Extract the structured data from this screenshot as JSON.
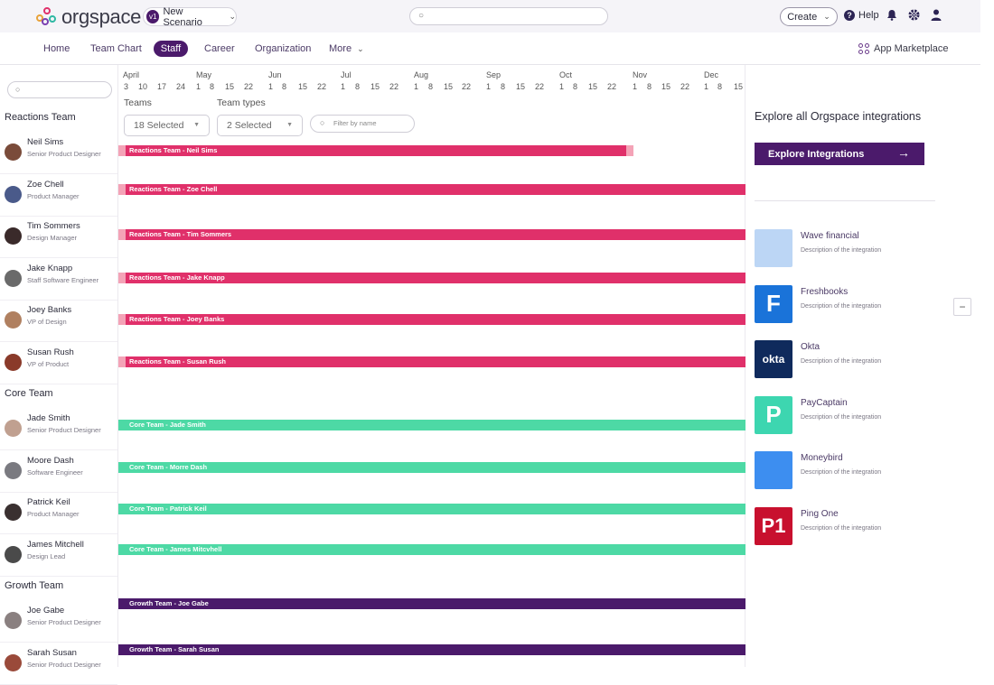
{
  "app": {
    "name": "orgspace"
  },
  "topbar": {
    "scenario_badge": "v1",
    "scenario_name": "New Scenario",
    "search_placeholder": "",
    "create_label": "Create",
    "help_label": "Help"
  },
  "nav": {
    "items": [
      "Home",
      "Team Chart",
      "Staff",
      "Career",
      "Organization",
      "More"
    ],
    "active": "Staff",
    "marketplace_label": "App Marketplace"
  },
  "timeline": {
    "months": [
      "April",
      "May",
      "Jun",
      "Jul",
      "Aug",
      "Sep",
      "Oct",
      "Nov",
      "Dec"
    ],
    "days": [
      "3",
      "10",
      "17",
      "24",
      "1",
      "8",
      "15",
      "22",
      "1",
      "8",
      "15",
      "22",
      "1",
      "8",
      "15",
      "22",
      "1",
      "8",
      "15",
      "22",
      "1",
      "8",
      "15",
      "22",
      "1",
      "8",
      "15",
      "22",
      "1",
      "8",
      "15",
      "22",
      "1",
      "8",
      "15"
    ],
    "filters": {
      "teams_label": "Teams",
      "teams_value": "18 Selected",
      "team_types_label": "Team types",
      "team_types_value": "2 Selected",
      "name_placeholder": "Filter by name"
    }
  },
  "colors": {
    "reactions": "#e0306a",
    "reactions_stub": "#f4a3b7",
    "core": "#4dd9a5",
    "growth": "#4b1a6b",
    "accent": "#4b1a6b"
  },
  "teams": [
    {
      "name": "Reactions Team",
      "members": [
        {
          "name": "Neil Sims",
          "role": "Senior Product Designer",
          "bar": "Reactions Team - Neil Sims"
        },
        {
          "name": "Zoe Chell",
          "role": "Product Manager",
          "bar": "Reactions Team - Zoe Chell"
        },
        {
          "name": "Tim Sommers",
          "role": "Design Manager",
          "bar": "Reactions Team - Tim Sommers"
        },
        {
          "name": "Jake Knapp",
          "role": "Staff Software Engineer",
          "bar": "Reactions Team - Jake Knapp"
        },
        {
          "name": "Joey Banks",
          "role": "VP of Design",
          "bar": "Reactions Team - Joey Banks"
        },
        {
          "name": "Susan Rush",
          "role": "VP of Product",
          "bar": "Reactions Team - Susan Rush"
        }
      ]
    },
    {
      "name": "Core Team",
      "members": [
        {
          "name": "Jade Smith",
          "role": "Senior Product Designer",
          "bar": "Core Team - Jade Smith"
        },
        {
          "name": "Moore Dash",
          "role": "Software Engineer",
          "bar": "Core Team - Morre Dash"
        },
        {
          "name": "Patrick Keil",
          "role": "Product Manager",
          "bar": "Core Team - Patrick Keil"
        },
        {
          "name": "James Mitchell",
          "role": "Design Lead",
          "bar": "Core Team - James Mitcvhell"
        }
      ]
    },
    {
      "name": "Growth Team",
      "members": [
        {
          "name": "Joe Gabe",
          "role": "Senior Product Designer",
          "bar": "Growth Team - Joe Gabe"
        },
        {
          "name": "Sarah Susan",
          "role": "Senior Product Designer",
          "bar": "Growth Team - Sarah Susan"
        }
      ]
    }
  ],
  "integrations_panel": {
    "title": "Explore all Orgspace integrations",
    "button_label": "Explore Integrations",
    "items": [
      {
        "name": "Wave financial",
        "desc": "Description of the integration",
        "logo_text": "",
        "color": "#bcd6f5"
      },
      {
        "name": "Freshbooks",
        "desc": "Description of the integration",
        "logo_text": "F",
        "color": "#1a73d9"
      },
      {
        "name": "Okta",
        "desc": "Description of the integration",
        "logo_text": "okta",
        "color": "#0f2a5c"
      },
      {
        "name": "PayCaptain",
        "desc": "Description of the integration",
        "logo_text": "P",
        "color": "#3dd6b0"
      },
      {
        "name": "Moneybird",
        "desc": "Description of the integration",
        "logo_text": "",
        "color": "#3d8ef0"
      },
      {
        "name": "Ping One",
        "desc": "Description of the integration",
        "logo_text": "P1",
        "color": "#c8102e"
      }
    ]
  },
  "collapse_label": "−"
}
